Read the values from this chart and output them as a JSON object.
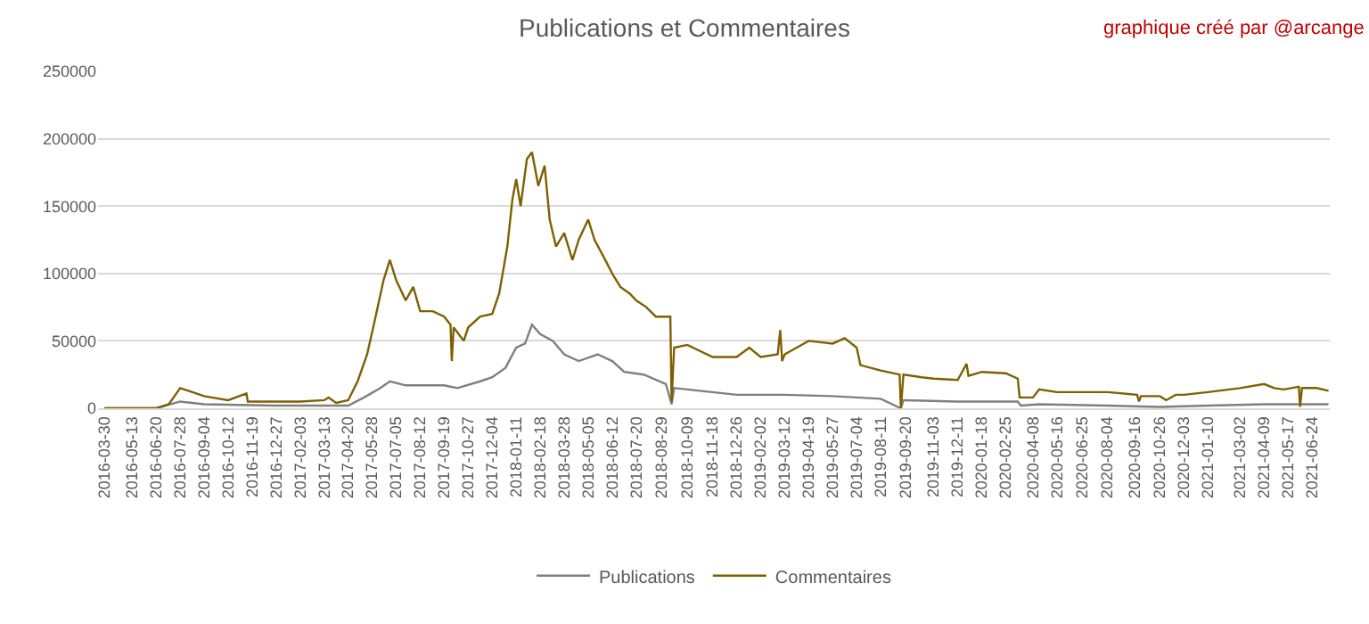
{
  "chart_data": {
    "type": "line",
    "title": "Publications et Commentaires",
    "annotations": [
      "graphique créé par @arcange"
    ],
    "xlim": [
      "2016-03-20",
      "2021-07-22"
    ],
    "xticks": [
      "2016-03-30",
      "2016-05-13",
      "2016-06-20",
      "2016-07-28",
      "2016-09-04",
      "2016-10-12",
      "2016-11-19",
      "2016-12-27",
      "2017-02-03",
      "2017-03-13",
      "2017-04-20",
      "2017-05-28",
      "2017-07-05",
      "2017-08-12",
      "2017-09-19",
      "2017-10-27",
      "2017-12-04",
      "2018-01-11",
      "2018-02-18",
      "2018-03-28",
      "2018-05-05",
      "2018-06-12",
      "2018-07-20",
      "2018-08-29",
      "2018-10-09",
      "2018-11-18",
      "2018-12-26",
      "2019-02-02",
      "2019-03-12",
      "2019-04-19",
      "2019-05-27",
      "2019-07-04",
      "2019-08-11",
      "2019-09-20",
      "2019-11-03",
      "2019-12-11",
      "2020-01-18",
      "2020-02-25",
      "2020-04-08",
      "2020-05-16",
      "2020-06-25",
      "2020-08-04",
      "2020-09-16",
      "2020-10-26",
      "2020-12-03",
      "2021-01-10",
      "2021-03-02",
      "2021-04-09",
      "2021-05-17",
      "2021-06-24"
    ],
    "ylim": [
      0,
      250000
    ],
    "yticks": [
      0,
      50000,
      100000,
      150000,
      200000,
      250000
    ],
    "grid": "y",
    "legend": "bottom",
    "marker": "none",
    "line_style": "solid",
    "series": [
      {
        "name": "Publications",
        "color": "#7f7f7f",
        "x": [
          "2016-03-30",
          "2016-06-20",
          "2016-07-28",
          "2016-09-04",
          "2016-12-27",
          "2017-03-13",
          "2017-04-20",
          "2017-05-15",
          "2017-06-10",
          "2017-06-25",
          "2017-07-20",
          "2017-09-19",
          "2017-10-10",
          "2017-11-15",
          "2017-12-04",
          "2017-12-25",
          "2018-01-11",
          "2018-01-25",
          "2018-02-05",
          "2018-02-18",
          "2018-03-10",
          "2018-03-28",
          "2018-04-20",
          "2018-05-20",
          "2018-06-12",
          "2018-07-01",
          "2018-08-01",
          "2018-09-05",
          "2018-09-14",
          "2018-09-18",
          "2018-10-09",
          "2018-12-26",
          "2019-03-12",
          "2019-05-27",
          "2019-08-11",
          "2019-09-12",
          "2019-09-16",
          "2019-12-11",
          "2020-03-15",
          "2020-03-20",
          "2020-04-18",
          "2020-08-04",
          "2020-10-26",
          "2021-01-10",
          "2021-04-09",
          "2021-07-20"
        ],
        "values": [
          0,
          0,
          5000,
          3000,
          2000,
          2000,
          2000,
          8000,
          15000,
          20000,
          17000,
          17000,
          15000,
          20000,
          23000,
          30000,
          45000,
          48000,
          62000,
          55000,
          50000,
          40000,
          35000,
          40000,
          35000,
          27000,
          25000,
          18000,
          3000,
          15000,
          14000,
          10000,
          10000,
          9000,
          7000,
          0,
          6000,
          5000,
          5000,
          2000,
          3000,
          2000,
          1000,
          2000,
          3000,
          3000
        ]
      },
      {
        "name": "Commentaires",
        "color": "#7f6000",
        "x": [
          "2016-03-30",
          "2016-06-20",
          "2016-07-10",
          "2016-07-28",
          "2016-08-10",
          "2016-09-04",
          "2016-10-12",
          "2016-11-10",
          "2016-11-12",
          "2016-12-27",
          "2017-02-03",
          "2017-03-13",
          "2017-03-20",
          "2017-04-01",
          "2017-04-20",
          "2017-05-05",
          "2017-05-20",
          "2017-06-01",
          "2017-06-15",
          "2017-06-25",
          "2017-07-05",
          "2017-07-20",
          "2017-08-01",
          "2017-08-12",
          "2017-09-01",
          "2017-09-19",
          "2017-09-29",
          "2017-10-01",
          "2017-10-04",
          "2017-10-20",
          "2017-10-27",
          "2017-11-15",
          "2017-12-04",
          "2017-12-15",
          "2017-12-28",
          "2018-01-05",
          "2018-01-11",
          "2018-01-18",
          "2018-01-28",
          "2018-02-05",
          "2018-02-15",
          "2018-02-25",
          "2018-03-05",
          "2018-03-15",
          "2018-03-28",
          "2018-04-10",
          "2018-04-20",
          "2018-05-05",
          "2018-05-15",
          "2018-06-01",
          "2018-06-12",
          "2018-06-25",
          "2018-07-10",
          "2018-07-20",
          "2018-08-05",
          "2018-08-20",
          "2018-09-05",
          "2018-09-12",
          "2018-09-14",
          "2018-09-18",
          "2018-10-09",
          "2018-11-18",
          "2018-12-26",
          "2019-01-15",
          "2019-02-02",
          "2019-03-01",
          "2019-03-05",
          "2019-03-08",
          "2019-03-12",
          "2019-04-19",
          "2019-05-27",
          "2019-06-15",
          "2019-07-04",
          "2019-07-10",
          "2019-08-11",
          "2019-09-10",
          "2019-09-12",
          "2019-09-16",
          "2019-10-15",
          "2019-11-03",
          "2019-12-11",
          "2019-12-25",
          "2019-12-28",
          "2020-01-18",
          "2020-02-25",
          "2020-03-15",
          "2020-03-18",
          "2020-04-08",
          "2020-04-18",
          "2020-05-16",
          "2020-08-04",
          "2020-09-20",
          "2020-09-23",
          "2020-09-26",
          "2020-10-26",
          "2020-11-05",
          "2020-11-20",
          "2020-12-03",
          "2021-01-10",
          "2021-03-02",
          "2021-04-09",
          "2021-04-25",
          "2021-05-10",
          "2021-06-03",
          "2021-06-05",
          "2021-06-08",
          "2021-07-01",
          "2021-07-20"
        ],
        "values": [
          0,
          0,
          3000,
          15000,
          13000,
          9000,
          6000,
          11000,
          5000,
          5000,
          5000,
          6000,
          8000,
          4000,
          6000,
          20000,
          40000,
          65000,
          95000,
          110000,
          95000,
          80000,
          90000,
          72000,
          72000,
          68000,
          62000,
          35000,
          60000,
          50000,
          60000,
          68000,
          70000,
          85000,
          120000,
          155000,
          170000,
          150000,
          185000,
          190000,
          165000,
          180000,
          140000,
          120000,
          130000,
          110000,
          125000,
          140000,
          125000,
          110000,
          100000,
          90000,
          85000,
          80000,
          75000,
          68000,
          68000,
          68000,
          5000,
          45000,
          47000,
          38000,
          38000,
          45000,
          38000,
          40000,
          58000,
          35000,
          40000,
          50000,
          48000,
          52000,
          45000,
          32000,
          28000,
          25000,
          0,
          25000,
          23000,
          22000,
          21000,
          33000,
          24000,
          27000,
          26000,
          22000,
          8000,
          8000,
          14000,
          12000,
          12000,
          10000,
          5000,
          9000,
          9000,
          6000,
          10000,
          10000,
          12000,
          15000,
          18000,
          15000,
          14000,
          16000,
          1000,
          15000,
          15000,
          13000
        ]
      }
    ]
  }
}
